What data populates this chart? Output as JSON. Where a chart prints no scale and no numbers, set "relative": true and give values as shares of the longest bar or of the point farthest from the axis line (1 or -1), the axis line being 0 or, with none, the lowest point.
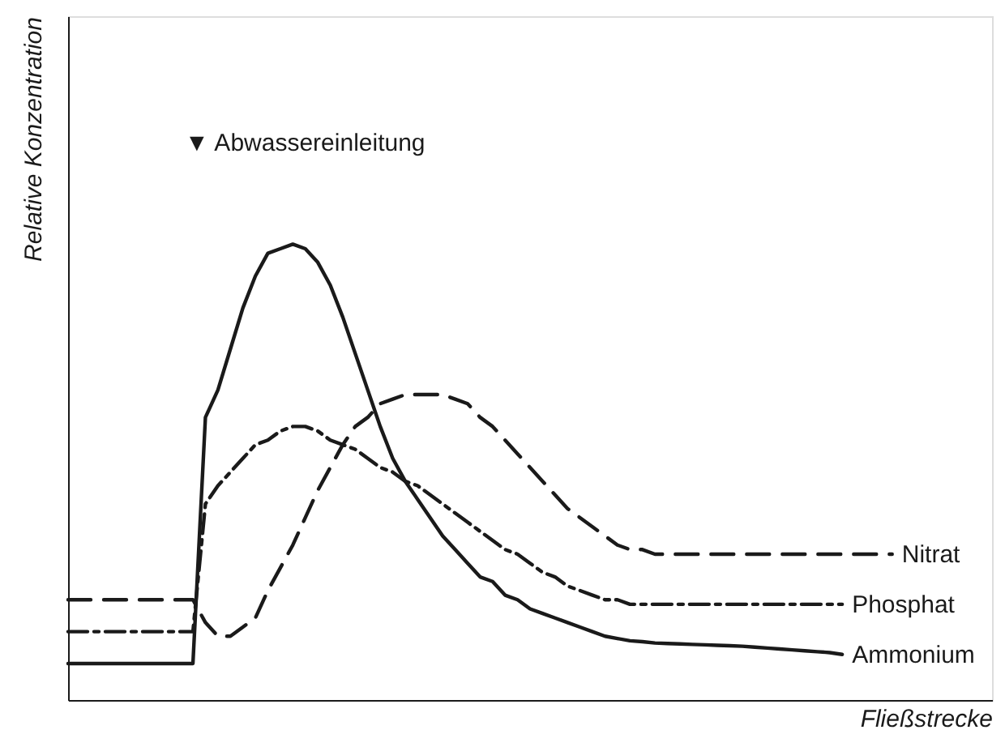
{
  "chart_data": {
    "type": "line",
    "relative": true,
    "xlabel": "Fließstrecke",
    "ylabel": "Relative Konzentration",
    "grid": false,
    "annotations": [
      "▼ Abwassereinleitung"
    ],
    "categories": [
      null,
      null,
      null,
      null,
      null,
      null,
      null,
      null,
      null,
      null,
      null,
      null,
      null,
      null,
      null,
      null,
      null,
      null,
      null,
      null,
      null,
      null,
      null,
      null,
      null,
      null,
      null,
      null,
      null,
      null,
      null,
      null,
      null,
      null,
      null,
      null,
      null,
      null,
      null,
      null,
      null,
      null,
      null,
      null,
      null,
      null,
      null,
      null,
      null,
      null,
      null,
      null,
      null,
      null,
      null,
      null,
      null,
      null,
      null,
      null,
      null,
      null,
      null,
      null,
      null,
      null,
      null
    ],
    "series": [
      {
        "name": "Nitrat",
        "color": "#1a1a1a",
        "line_style": "dashed",
        "values": [
          0.22,
          0.22,
          0.22,
          0.22,
          0.22,
          0.22,
          0.22,
          0.22,
          0.22,
          0.22,
          0.22,
          0.17,
          0.14,
          0.14,
          0.16,
          0.18,
          0.24,
          0.29,
          0.34,
          0.4,
          0.46,
          0.51,
          0.56,
          0.6,
          0.62,
          0.65,
          0.66,
          0.67,
          0.67,
          0.67,
          0.67,
          0.66,
          0.65,
          0.62,
          0.6,
          0.57,
          0.54,
          0.51,
          0.48,
          0.45,
          0.42,
          0.4,
          0.38,
          0.36,
          0.34,
          0.33,
          0.33,
          0.32,
          0.32,
          0.32,
          0.32,
          0.32,
          0.32,
          0.32,
          0.32,
          0.32,
          0.32,
          0.32,
          0.32,
          0.32,
          0.32,
          0.32,
          0.32,
          0.32,
          0.32,
          0.32,
          0.32
        ]
      },
      {
        "name": "Phosphat",
        "color": "#1a1a1a",
        "line_style": "dashdot",
        "values": [
          0.15,
          0.15,
          0.15,
          0.15,
          0.15,
          0.15,
          0.15,
          0.15,
          0.15,
          0.15,
          0.15,
          0.43,
          0.47,
          0.5,
          0.53,
          0.56,
          0.57,
          0.59,
          0.6,
          0.6,
          0.59,
          0.57,
          0.56,
          0.55,
          0.53,
          0.51,
          0.5,
          0.48,
          0.47,
          0.45,
          0.43,
          0.41,
          0.39,
          0.37,
          0.35,
          0.33,
          0.32,
          0.3,
          0.28,
          0.27,
          0.25,
          0.24,
          0.23,
          0.22,
          0.22,
          0.21,
          0.21,
          0.21,
          0.21,
          0.21,
          0.21,
          0.21,
          0.21,
          0.21,
          0.21,
          0.21,
          0.21,
          0.21,
          0.21,
          0.21,
          0.21,
          0.21,
          0.21,
          null,
          null,
          null,
          null
        ]
      },
      {
        "name": "Ammonium",
        "color": "#1a1a1a",
        "line_style": "solid",
        "values": [
          0.08,
          0.08,
          0.08,
          0.08,
          0.08,
          0.08,
          0.08,
          0.08,
          0.08,
          0.08,
          0.08,
          0.62,
          0.68,
          0.77,
          0.86,
          0.93,
          0.98,
          0.99,
          1,
          0.99,
          0.96,
          0.91,
          0.84,
          0.76,
          0.68,
          0.6,
          0.53,
          0.48,
          0.44,
          0.4,
          0.36,
          0.33,
          0.3,
          0.27,
          0.26,
          0.23,
          0.22,
          0.2,
          0.19,
          0.18,
          0.17,
          0.16,
          0.15,
          0.14,
          0.135,
          0.13,
          0.128,
          0.125,
          0.124,
          0.123,
          0.122,
          0.121,
          0.12,
          0.119,
          0.118,
          0.116,
          0.114,
          0.112,
          0.11,
          0.108,
          0.106,
          0.104,
          0.1,
          null,
          null,
          null,
          null
        ]
      }
    ]
  }
}
